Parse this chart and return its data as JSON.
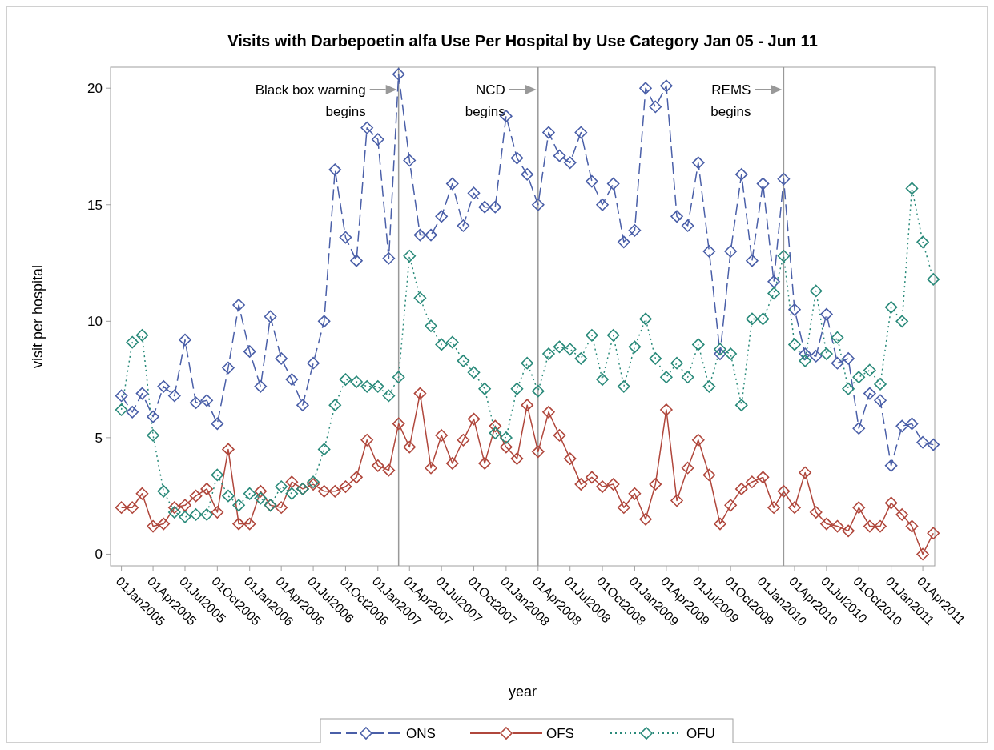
{
  "chart_data": {
    "type": "line",
    "title": "Visits with Darbepoetin alfa Use Per Hospital by Use Category Jan 05 - Jun 11",
    "xlabel": "year",
    "ylabel": "visit per hospital",
    "x": [
      "2005-01",
      "2005-02",
      "2005-03",
      "2005-04",
      "2005-05",
      "2005-06",
      "2005-07",
      "2005-08",
      "2005-09",
      "2005-10",
      "2005-11",
      "2005-12",
      "2006-01",
      "2006-02",
      "2006-03",
      "2006-04",
      "2006-05",
      "2006-06",
      "2006-07",
      "2006-08",
      "2006-09",
      "2006-10",
      "2006-11",
      "2006-12",
      "2007-01",
      "2007-02",
      "2007-03",
      "2007-04",
      "2007-05",
      "2007-06",
      "2007-07",
      "2007-08",
      "2007-09",
      "2007-10",
      "2007-11",
      "2007-12",
      "2008-01",
      "2008-02",
      "2008-03",
      "2008-04",
      "2008-05",
      "2008-06",
      "2008-07",
      "2008-08",
      "2008-09",
      "2008-10",
      "2008-11",
      "2008-12",
      "2009-01",
      "2009-02",
      "2009-03",
      "2009-04",
      "2009-05",
      "2009-06",
      "2009-07",
      "2009-08",
      "2009-09",
      "2009-10",
      "2009-11",
      "2009-12",
      "2010-01",
      "2010-02",
      "2010-03",
      "2010-04",
      "2010-05",
      "2010-06",
      "2010-07",
      "2010-08",
      "2010-09",
      "2010-10",
      "2010-11",
      "2010-12",
      "2011-01",
      "2011-02",
      "2011-03",
      "2011-04",
      "2011-05"
    ],
    "series": [
      {
        "name": "ONS",
        "color": "#4a5fa8",
        "line_style": "dashed",
        "values": [
          6.8,
          6.1,
          6.9,
          5.9,
          7.2,
          6.8,
          9.2,
          6.5,
          6.6,
          5.6,
          8.0,
          10.7,
          8.7,
          7.2,
          10.2,
          8.4,
          7.5,
          6.4,
          8.2,
          10.0,
          16.5,
          13.6,
          12.6,
          18.3,
          17.8,
          12.7,
          20.6,
          16.9,
          13.7,
          13.7,
          14.5,
          15.9,
          14.1,
          15.5,
          14.9,
          14.9,
          18.8,
          17.0,
          16.3,
          15.0,
          18.1,
          17.1,
          16.8,
          18.1,
          16.0,
          15.0,
          15.9,
          13.4,
          13.9,
          20.0,
          19.2,
          20.1,
          14.5,
          14.1,
          16.8,
          13.0,
          8.6,
          13.0,
          16.3,
          12.6,
          15.9,
          11.7,
          16.1,
          10.5,
          8.6,
          8.5,
          10.3,
          8.2,
          8.4,
          5.4,
          6.9,
          6.6,
          3.8,
          5.5,
          5.6,
          4.8,
          4.7
        ]
      },
      {
        "name": "OFS",
        "color": "#b0473c",
        "line_style": "solid",
        "values": [
          2.0,
          2.0,
          2.6,
          1.2,
          1.3,
          2.0,
          2.1,
          2.5,
          2.8,
          1.8,
          4.5,
          1.3,
          1.3,
          2.7,
          2.1,
          2.0,
          3.1,
          2.8,
          3.0,
          2.7,
          2.7,
          2.9,
          3.3,
          4.9,
          3.8,
          3.6,
          5.6,
          4.6,
          6.9,
          3.7,
          5.1,
          3.9,
          4.9,
          5.8,
          3.9,
          5.5,
          4.6,
          4.1,
          6.4,
          4.4,
          6.1,
          5.1,
          4.1,
          3.0,
          3.3,
          2.9,
          3.0,
          2.0,
          2.6,
          1.5,
          3.0,
          6.2,
          2.3,
          3.7,
          4.9,
          3.4,
          1.3,
          2.1,
          2.8,
          3.1,
          3.3,
          2.0,
          2.7,
          2.0,
          3.5,
          1.8,
          1.3,
          1.2,
          1.0,
          2.0,
          1.2,
          1.2,
          2.2,
          1.7,
          1.2,
          0.0,
          0.9
        ]
      },
      {
        "name": "OFU",
        "color": "#2a8a7a",
        "line_style": "dotted",
        "values": [
          6.2,
          9.1,
          9.4,
          5.1,
          2.7,
          1.8,
          1.6,
          1.7,
          1.7,
          3.4,
          2.5,
          2.1,
          2.6,
          2.4,
          2.1,
          2.9,
          2.6,
          2.8,
          3.1,
          4.5,
          6.4,
          7.5,
          7.4,
          7.2,
          7.2,
          6.8,
          7.6,
          12.8,
          11.0,
          9.8,
          9.0,
          9.1,
          8.3,
          7.8,
          7.1,
          5.2,
          5.0,
          7.1,
          8.2,
          7.0,
          8.6,
          8.9,
          8.8,
          8.4,
          9.4,
          7.5,
          9.4,
          7.2,
          8.9,
          10.1,
          8.4,
          7.6,
          8.2,
          7.6,
          9.0,
          7.2,
          8.8,
          8.6,
          6.4,
          10.1,
          10.1,
          11.2,
          12.8,
          9.0,
          8.3,
          11.3,
          8.6,
          9.3,
          7.1,
          7.6,
          7.9,
          7.3,
          10.6,
          10.0,
          15.7,
          13.4,
          11.8
        ]
      }
    ],
    "xlim": [
      "2004-12-01",
      "2011-05-05"
    ],
    "xticks": [
      {
        "value": "2005-01-01",
        "label": "01Jan2005"
      },
      {
        "value": "2005-04-01",
        "label": "01Apr2005"
      },
      {
        "value": "2005-07-01",
        "label": "01Jul2005"
      },
      {
        "value": "2005-10-01",
        "label": "01Oct2005"
      },
      {
        "value": "2006-01-01",
        "label": "01Jan2006"
      },
      {
        "value": "2006-04-01",
        "label": "01Apr2006"
      },
      {
        "value": "2006-07-01",
        "label": "01Jul2006"
      },
      {
        "value": "2006-10-01",
        "label": "01Oct2006"
      },
      {
        "value": "2007-01-01",
        "label": "01Jan2007"
      },
      {
        "value": "2007-04-01",
        "label": "01Apr2007"
      },
      {
        "value": "2007-07-01",
        "label": "01Jul2007"
      },
      {
        "value": "2007-10-01",
        "label": "01Oct2007"
      },
      {
        "value": "2008-01-01",
        "label": "01Jan2008"
      },
      {
        "value": "2008-04-01",
        "label": "01Apr2008"
      },
      {
        "value": "2008-07-01",
        "label": "01Jul2008"
      },
      {
        "value": "2008-10-01",
        "label": "01Oct2008"
      },
      {
        "value": "2009-01-01",
        "label": "01Jan2009"
      },
      {
        "value": "2009-04-01",
        "label": "01Apr2009"
      },
      {
        "value": "2009-07-01",
        "label": "01Jul2009"
      },
      {
        "value": "2009-10-01",
        "label": "01Oct2009"
      },
      {
        "value": "2010-01-01",
        "label": "01Jan2010"
      },
      {
        "value": "2010-04-01",
        "label": "01Apr2010"
      },
      {
        "value": "2010-07-01",
        "label": "01Jul2010"
      },
      {
        "value": "2010-10-01",
        "label": "01Oct2010"
      },
      {
        "value": "2011-01-01",
        "label": "01Jan2011"
      },
      {
        "value": "2011-04-01",
        "label": "01Apr2011"
      }
    ],
    "ylim": [
      -0.5,
      20.9
    ],
    "yticks": [
      0,
      5,
      10,
      15,
      20
    ],
    "ref_lines": [
      {
        "axis": "x",
        "value": "2007-03",
        "label": "Black box warning begins",
        "color": "#999999"
      },
      {
        "axis": "x",
        "value": "2008-04",
        "label": "NCD begins",
        "color": "#999999"
      },
      {
        "axis": "x",
        "value": "2010-03",
        "label": "REMS begins",
        "color": "#999999"
      }
    ],
    "grid": false,
    "legend": "bottom",
    "marker": "diamond"
  }
}
